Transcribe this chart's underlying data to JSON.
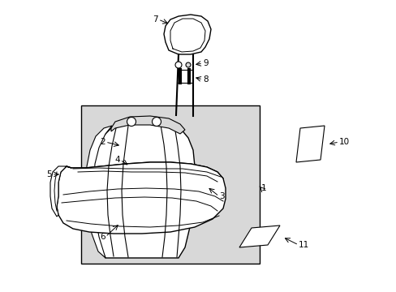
{
  "background_color": "#ffffff",
  "line_color": "#000000",
  "gray_fill": "#d8d8d8",
  "label_fontsize": 7.5,
  "fig_w": 4.89,
  "fig_h": 3.6,
  "dpi": 100
}
